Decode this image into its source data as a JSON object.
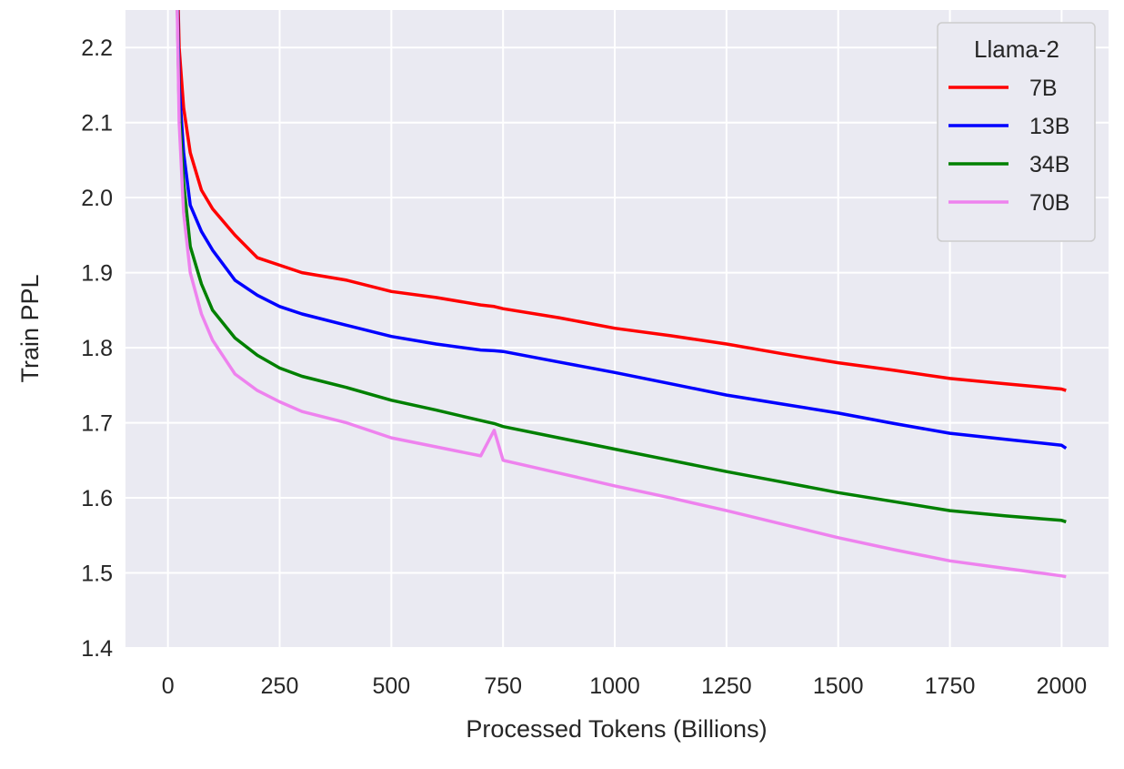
{
  "chart_data": {
    "type": "line",
    "title": "",
    "xlabel": "Processed Tokens (Billions)",
    "ylabel": "Train PPL",
    "xlim": [
      -95,
      2105
    ],
    "ylim": [
      1.4,
      2.25
    ],
    "xticks": [
      0,
      250,
      500,
      750,
      1000,
      1250,
      1500,
      1750,
      2000
    ],
    "yticks": [
      1.4,
      1.5,
      1.6,
      1.7,
      1.8,
      1.9,
      2.0,
      2.1,
      2.2
    ],
    "grid": true,
    "background": "#eaeaf2",
    "legend": {
      "title": "Llama-2",
      "placement": "top-right"
    },
    "x": [
      15,
      25,
      35,
      50,
      75,
      100,
      150,
      200,
      250,
      300,
      400,
      500,
      600,
      700,
      730,
      750,
      875,
      1000,
      1125,
      1250,
      1375,
      1500,
      1625,
      1750,
      1875,
      2000,
      2010
    ],
    "series": [
      {
        "name": "7B",
        "color": "#ff0000",
        "values": [
          2.45,
          2.2,
          2.12,
          2.06,
          2.01,
          1.985,
          1.95,
          1.92,
          1.91,
          1.9,
          1.89,
          1.875,
          1.867,
          1.857,
          1.855,
          1.852,
          1.84,
          1.826,
          1.816,
          1.805,
          1.792,
          1.78,
          1.77,
          1.759,
          1.752,
          1.745,
          1.743
        ]
      },
      {
        "name": "13B",
        "color": "#0000ff",
        "values": [
          2.45,
          2.15,
          2.06,
          1.99,
          1.955,
          1.93,
          1.89,
          1.87,
          1.855,
          1.845,
          1.83,
          1.815,
          1.805,
          1.797,
          1.796,
          1.795,
          1.781,
          1.767,
          1.752,
          1.737,
          1.725,
          1.713,
          1.699,
          1.686,
          1.678,
          1.67,
          1.666
        ]
      },
      {
        "name": "34B",
        "color": "#008000",
        "values": [
          2.45,
          2.12,
          2.02,
          1.935,
          1.885,
          1.85,
          1.813,
          1.79,
          1.773,
          1.762,
          1.747,
          1.73,
          1.717,
          1.703,
          1.699,
          1.695,
          1.68,
          1.665,
          1.65,
          1.635,
          1.621,
          1.607,
          1.595,
          1.583,
          1.576,
          1.57,
          1.568
        ]
      },
      {
        "name": "70B",
        "color": "#ee82ee",
        "values": [
          2.45,
          2.1,
          1.98,
          1.9,
          1.845,
          1.81,
          1.765,
          1.743,
          1.728,
          1.715,
          1.7,
          1.68,
          1.668,
          1.656,
          1.69,
          1.65,
          1.633,
          1.616,
          1.6,
          1.583,
          1.565,
          1.547,
          1.531,
          1.516,
          1.506,
          1.496,
          1.495
        ]
      }
    ]
  }
}
